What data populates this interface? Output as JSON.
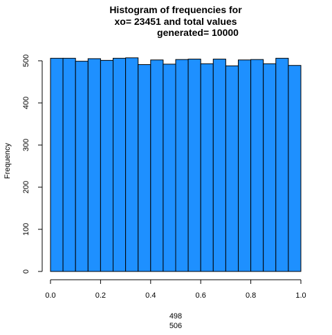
{
  "chart_data": {
    "type": "bar",
    "title_lines": [
      "Histogram of frequencies for",
      "xo= 23451  and total values",
      "generated= 10000"
    ],
    "xlabel_lines": [
      "498",
      "506"
    ],
    "ylabel": "Frequency",
    "bin_edges": [
      0.0,
      0.05,
      0.1,
      0.15,
      0.2,
      0.25,
      0.3,
      0.35,
      0.4,
      0.45,
      0.5,
      0.55,
      0.6,
      0.65,
      0.7,
      0.75,
      0.8,
      0.85,
      0.9,
      0.95,
      1.0
    ],
    "values": [
      506,
      506,
      499,
      505,
      501,
      506,
      507,
      491,
      502,
      492,
      503,
      504,
      493,
      504,
      488,
      502,
      503,
      493,
      506,
      489
    ],
    "xlim": [
      0,
      1
    ],
    "ylim": [
      0,
      500
    ],
    "x_ticks": [
      "0.0",
      "0.2",
      "0.4",
      "0.6",
      "0.8",
      "1.0"
    ],
    "y_ticks": [
      "0",
      "100",
      "200",
      "300",
      "400",
      "500"
    ],
    "bar_color": "#1E90FF",
    "bar_edge_color": "#000000",
    "grid": false
  }
}
